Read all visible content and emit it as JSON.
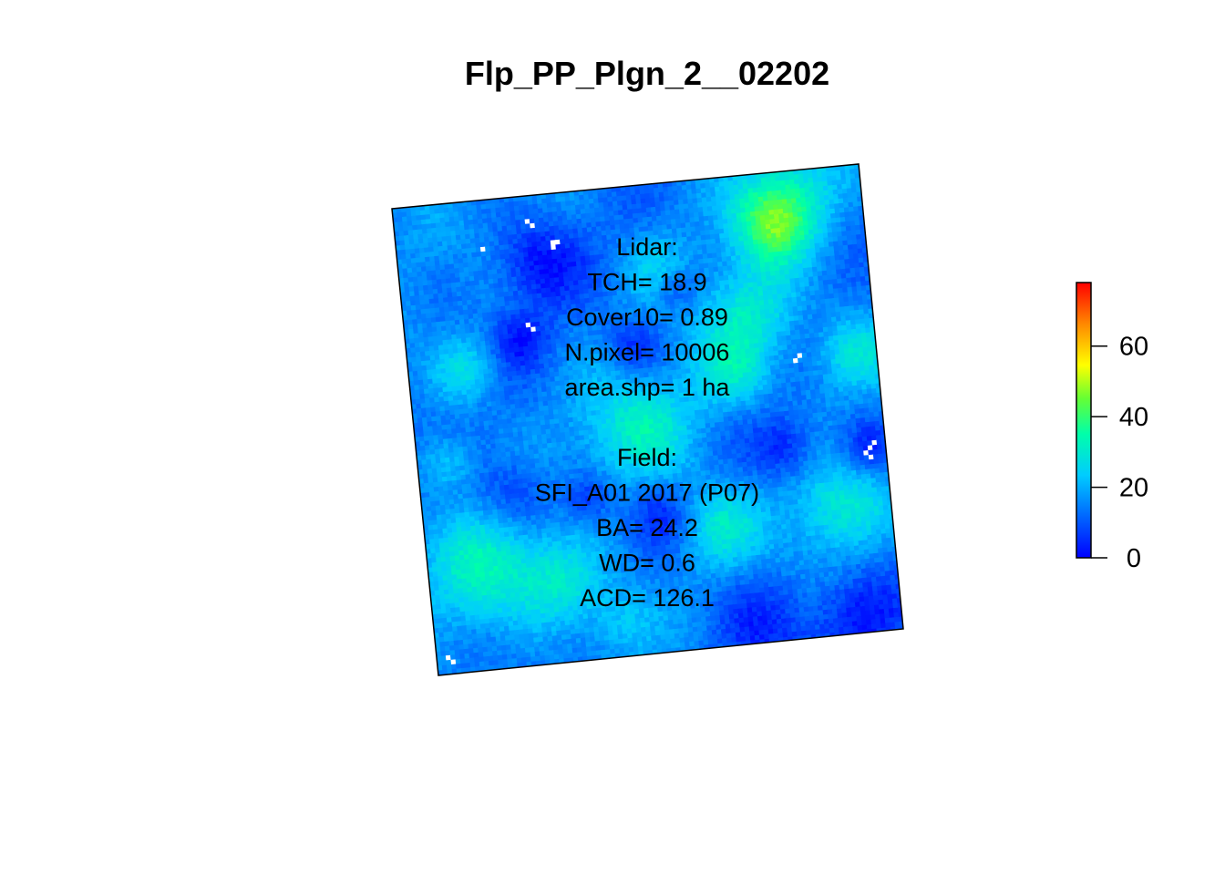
{
  "chart_data": {
    "type": "heatmap",
    "title": "Flp_PP_Plgn_2__02202",
    "annotation_lines": [
      "Lidar:",
      "TCH= 18.9",
      "Cover10= 0.89",
      "N.pixel= 10006",
      "area.shp= 1 ha",
      "",
      "Field:",
      "SFI_A01 2017 (P07)",
      "BA= 24.2",
      "WD= 0.6",
      "ACD= 126.1"
    ],
    "colorbar": {
      "min": 0,
      "max": 78,
      "ticks": [
        0,
        20,
        40,
        60
      ],
      "tick_labels": [
        "0",
        "20",
        "40",
        "60"
      ],
      "palette": "rainbow (blue → cyan → green → yellow → orange → red)"
    },
    "raster": {
      "description_values": "canopy height, mostly 5–35",
      "grid_size": 100,
      "rotation_degrees": -6,
      "nodata_color": "#ffffff"
    },
    "colors": {
      "low": "#0000ff",
      "mid": "#00e5ff",
      "high": "#ff0000"
    }
  }
}
